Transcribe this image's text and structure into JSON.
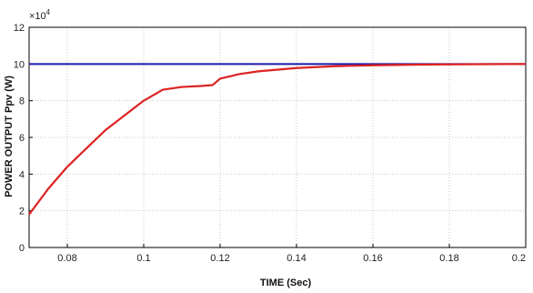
{
  "chart_data": {
    "type": "line",
    "title": "",
    "xlabel": "TIME (Sec)",
    "ylabel": "POWER OUTPUT Ppv (W)",
    "y_multiplier_base": "×10",
    "y_multiplier_exp": "4",
    "xlim": [
      0.07,
      0.2
    ],
    "ylim": [
      0,
      12
    ],
    "x_ticks": [
      "0.08",
      "0.1",
      "0.12",
      "0.14",
      "0.16",
      "0.18",
      "0.2"
    ],
    "y_ticks": [
      "0",
      "2",
      "4",
      "6",
      "8",
      "10",
      "12"
    ],
    "grid": true,
    "series": [
      {
        "color": "#1a1aa8",
        "x": [
          0.07,
          0.2
        ],
        "y": [
          10,
          10
        ]
      },
      {
        "color": "#dd2222",
        "x": [
          0.07,
          0.075,
          0.08,
          0.085,
          0.09,
          0.095,
          0.1,
          0.105,
          0.11,
          0.115,
          0.118,
          0.12,
          0.125,
          0.13,
          0.14,
          0.15,
          0.16,
          0.17,
          0.18,
          0.19,
          0.2
        ],
        "y": [
          1.8,
          3.2,
          4.4,
          5.4,
          6.4,
          7.2,
          8.0,
          8.6,
          8.75,
          8.8,
          8.85,
          9.2,
          9.45,
          9.6,
          9.78,
          9.88,
          9.93,
          9.96,
          9.98,
          9.99,
          10.0
        ]
      }
    ]
  }
}
